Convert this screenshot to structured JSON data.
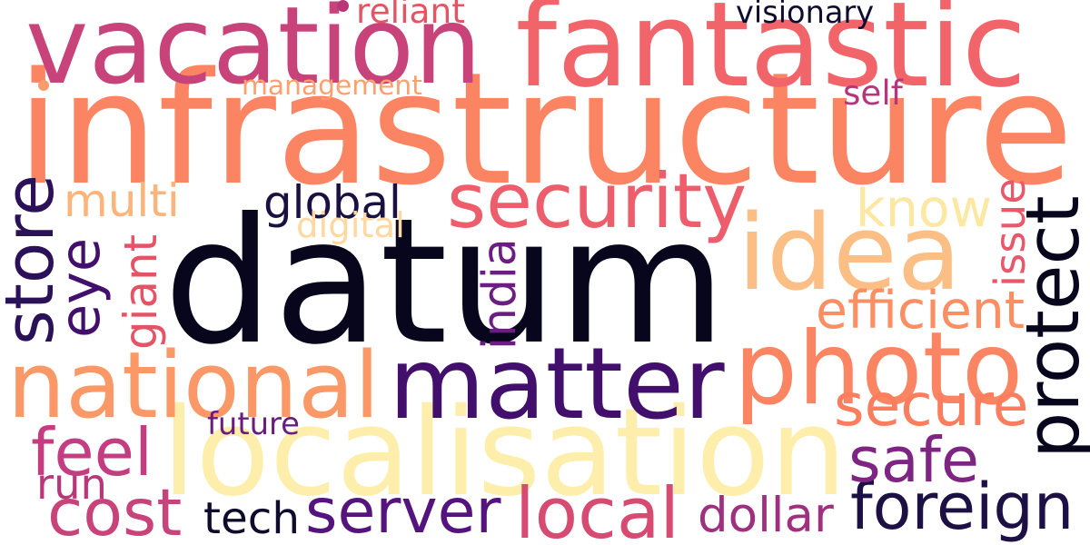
{
  "words": [
    {
      "key": "datum",
      "text": "datum",
      "color": "#07061c"
    },
    {
      "key": "infrastructure",
      "text": "infrastructure",
      "color": "#fb8563"
    },
    {
      "key": "vacation",
      "text": "vacation",
      "color": "#c8437a"
    },
    {
      "key": "fantastic",
      "text": "fantastic",
      "color": "#f1656a"
    },
    {
      "key": "localisation",
      "text": "localisation",
      "color": "#fdeeac"
    },
    {
      "key": "photo",
      "text": "photo",
      "color": "#fb8563"
    },
    {
      "key": "matter",
      "text": "matter",
      "color": "#42106c"
    },
    {
      "key": "idea",
      "text": "idea",
      "color": "#fbbe85"
    },
    {
      "key": "national",
      "text": "national",
      "color": "#fa9867"
    },
    {
      "key": "security",
      "text": "security",
      "color": "#ee5d6c"
    },
    {
      "key": "protect",
      "text": "protect",
      "color": "#07061c"
    },
    {
      "key": "foreign",
      "text": "foreign",
      "color": "#1c1044"
    },
    {
      "key": "store",
      "text": "store",
      "color": "#2b1158"
    },
    {
      "key": "eye",
      "text": "eye",
      "color": "#42106c"
    },
    {
      "key": "cost",
      "text": "cost",
      "color": "#c8437a"
    },
    {
      "key": "server",
      "text": "server",
      "color": "#55137d"
    },
    {
      "key": "local",
      "text": "local",
      "color": "#d74b73"
    },
    {
      "key": "secure",
      "text": "secure",
      "color": "#fa7d5e"
    },
    {
      "key": "safe",
      "text": "safe",
      "color": "#7e2482"
    },
    {
      "key": "feel",
      "text": "feel",
      "color": "#c33d80"
    },
    {
      "key": "know",
      "text": "know",
      "color": "#fde8a3"
    },
    {
      "key": "efficient",
      "text": "efficient",
      "color": "#fb8e63"
    },
    {
      "key": "global",
      "text": "global",
      "color": "#1a1042"
    },
    {
      "key": "multi",
      "text": "multi",
      "color": "#fcb47a"
    },
    {
      "key": "giant",
      "text": "giant",
      "color": "#e55466"
    },
    {
      "key": "india",
      "text": "india",
      "color": "#6b1d81"
    },
    {
      "key": "issue",
      "text": "issue",
      "color": "#e8586a"
    },
    {
      "key": "tech",
      "text": "tech",
      "color": "#0e0b2b"
    },
    {
      "key": "dollar",
      "text": "dollar",
      "color": "#9f2f7f"
    },
    {
      "key": "run",
      "text": "run",
      "color": "#b73779"
    },
    {
      "key": "management",
      "text": "management",
      "color": "#fca06e"
    },
    {
      "key": "digital",
      "text": "digital",
      "color": "#fdd8a0"
    },
    {
      "key": "future",
      "text": "future",
      "color": "#6a1c81"
    },
    {
      "key": "reliant",
      "text": "reliant",
      "color": "#e45563"
    },
    {
      "key": "visionary",
      "text": "visionary",
      "color": "#100c2f"
    },
    {
      "key": "self",
      "text": "self",
      "color": "#b5367a"
    }
  ],
  "dots": [
    {
      "key": "dot-top",
      "color": "#b73779"
    },
    {
      "key": "dot-left",
      "color": "#fa9c6b"
    }
  ]
}
